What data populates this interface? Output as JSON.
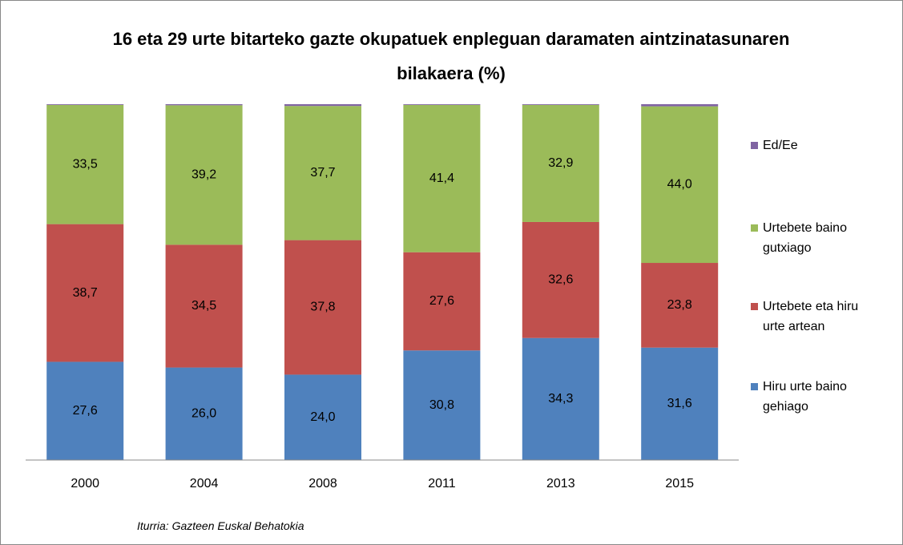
{
  "chart_data": {
    "type": "stacked_bar",
    "title": "16 eta 29 urte bitarteko gazte okupatuek enpleguan daramaten aintzinatasunaren bilakaera  (%)",
    "categories": [
      "2000",
      "2004",
      "2008",
      "2011",
      "2013",
      "2015"
    ],
    "series": [
      {
        "name": "Hiru urte baino gehiago",
        "color": "#4f81bd",
        "values": [
          27.6,
          26.0,
          24.0,
          30.8,
          34.3,
          31.6
        ],
        "value_labels": [
          "27,6",
          "26,0",
          "24,0",
          "30,8",
          "34,3",
          "31,6"
        ]
      },
      {
        "name": "Urtebete eta hiru urte artean",
        "color": "#c0504d",
        "values": [
          38.7,
          34.5,
          37.8,
          27.6,
          32.6,
          23.8
        ],
        "value_labels": [
          "38,7",
          "34,5",
          "37,8",
          "27,6",
          "32,6",
          "23,8"
        ]
      },
      {
        "name": "Urtebete baino gutxiago",
        "color": "#9bbb59",
        "values": [
          33.5,
          39.2,
          37.7,
          41.4,
          32.9,
          44.0
        ],
        "value_labels": [
          "33,5",
          "39,2",
          "37,7",
          "41,4",
          "32,9",
          "44,0"
        ]
      },
      {
        "name": "Ed/Ee",
        "color": "#8064a2",
        "values": [
          0.2,
          0.3,
          0.5,
          0.2,
          0.2,
          0.6
        ]
      }
    ],
    "ylim": [
      0,
      100
    ],
    "legend": "right",
    "source": "Iturria: Gazteen Euskal Behatokia"
  }
}
